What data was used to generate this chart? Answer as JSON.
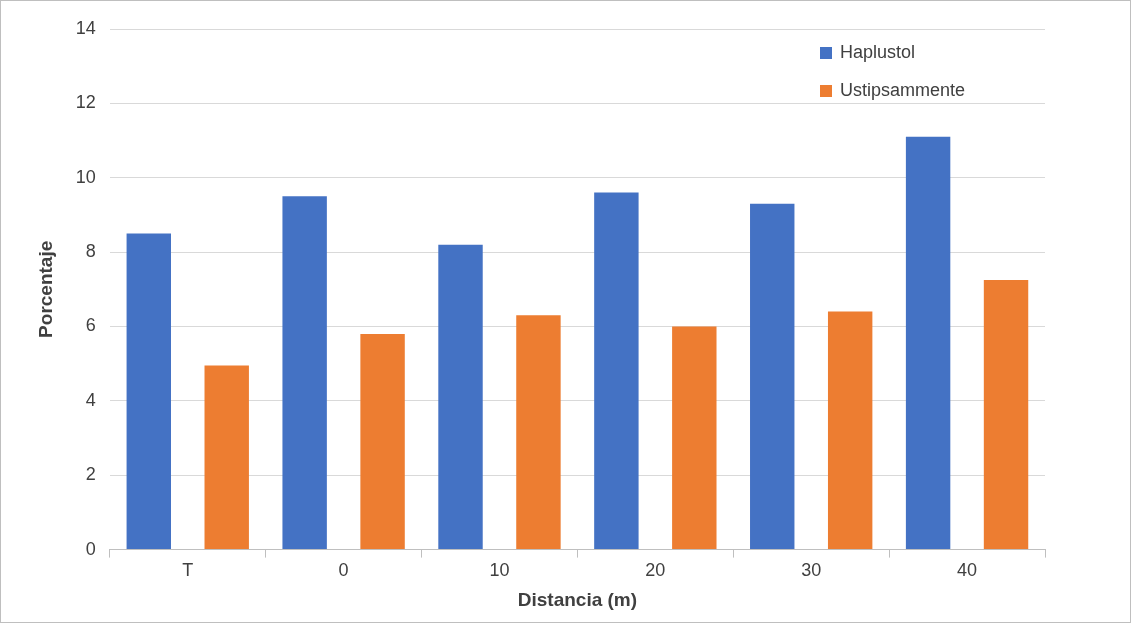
{
  "chart_data": {
    "type": "bar",
    "xlabel": "Distancia (m)",
    "ylabel": "Porcentaje",
    "categories": [
      "T",
      "0",
      "10",
      "20",
      "30",
      "40"
    ],
    "series": [
      {
        "name": "Haplustol",
        "color": "#4472c4",
        "values": [
          8.5,
          9.5,
          8.2,
          9.6,
          9.3,
          11.1
        ]
      },
      {
        "name": "Ustipsammente",
        "color": "#ed7d31",
        "values": [
          4.95,
          5.8,
          6.3,
          6.0,
          6.4,
          7.25
        ]
      }
    ],
    "ylim": [
      0,
      14
    ],
    "yticks": [
      0,
      2,
      4,
      6,
      8,
      10,
      12,
      14
    ],
    "grid": "y",
    "legend": "top right"
  }
}
